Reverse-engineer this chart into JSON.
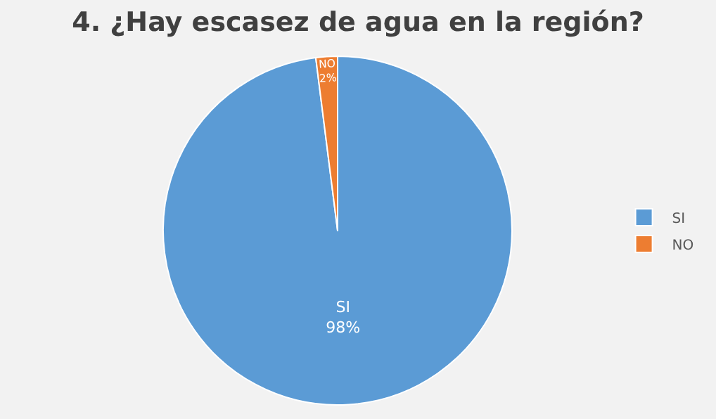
{
  "chart_data": {
    "type": "pie",
    "title": "4. ¿Hay escasez de agua en la región?",
    "categories": [
      "SI",
      "NO"
    ],
    "values": [
      98,
      2
    ],
    "value_labels": [
      "98%",
      "2%"
    ],
    "colors": [
      "#5b9bd5",
      "#ed7d31"
    ],
    "legend": "right"
  }
}
